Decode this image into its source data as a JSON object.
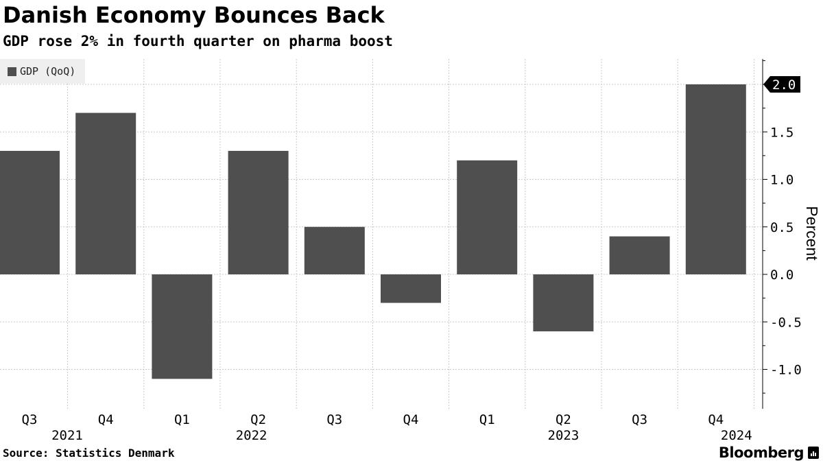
{
  "title": "Danish Economy Bounces Back",
  "subtitle": "GDP rose 2% in fourth quarter on pharma boost",
  "source": "Source: Statistics Denmark",
  "brand": "Bloomberg",
  "chart_data": {
    "type": "bar",
    "categories": [
      "Q3",
      "Q4",
      "Q1",
      "Q2",
      "Q3",
      "Q4",
      "Q1",
      "Q2",
      "Q3",
      "Q4"
    ],
    "years": [
      {
        "label": "2021",
        "under_index": 0
      },
      {
        "label": "2022",
        "under_index": 3
      },
      {
        "label": "2023",
        "under_index": 7
      },
      {
        "label": "2024",
        "under_index": 9
      }
    ],
    "series": [
      {
        "name": "GDP (QoQ)",
        "color": "#4f4f4f",
        "values": [
          1.3,
          1.7,
          -1.1,
          1.3,
          0.5,
          -0.3,
          1.2,
          -0.6,
          0.4,
          2.0
        ]
      }
    ],
    "ylabel": "Percent",
    "ylim": [
      -1.35,
      2.3
    ],
    "yticks": [
      -1.0,
      -0.5,
      0.0,
      0.5,
      1.0,
      1.5,
      2.0
    ],
    "ytick_labels": [
      "-1.0",
      "-0.5",
      "0.0",
      "0.5",
      "1.0",
      "1.5",
      ""
    ],
    "last_value_label": "2.0",
    "axis_position": "right",
    "legend_position": "top-left",
    "grid": true
  }
}
